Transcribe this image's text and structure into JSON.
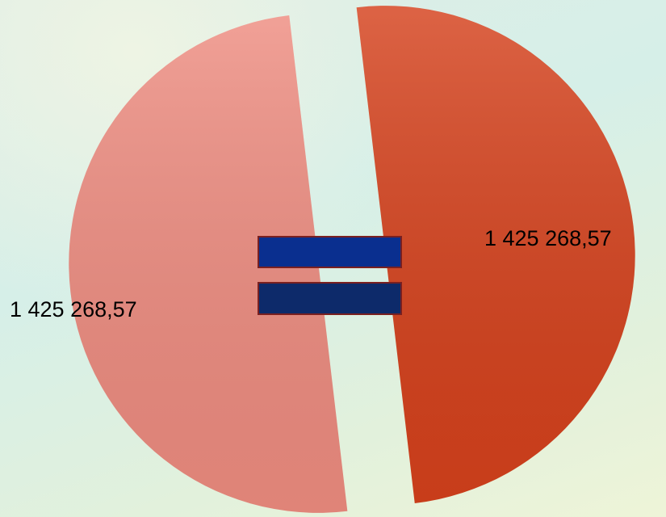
{
  "chart_data": {
    "type": "pie",
    "values": [
      1425268.57,
      1425268.57
    ],
    "value_labels": [
      "1 425 268,57",
      "1 425 268,57"
    ],
    "colors": [
      "#d5411c",
      "#ee8c80"
    ]
  }
}
